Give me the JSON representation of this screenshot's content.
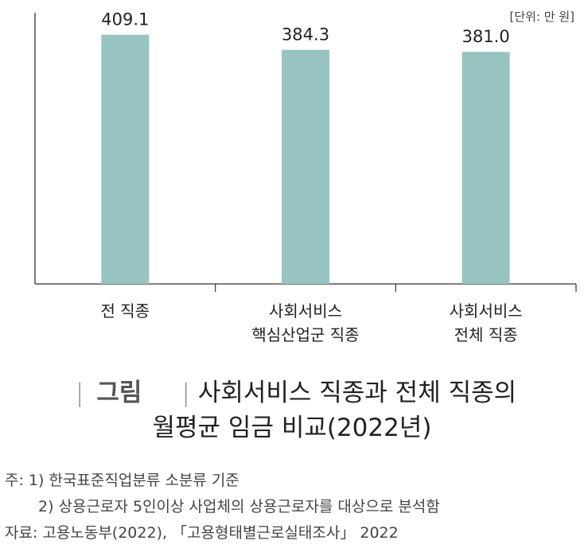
{
  "unit_label": "[단위: 만 원]",
  "caption": {
    "tag": "그림",
    "line1": "사회서비스 직종과 전체 직종의",
    "line2": "월평균 임금 비교(2022년)"
  },
  "notes": {
    "note1": "주: 1) 한국표준직업분류 소분류 기준",
    "note2": "2) 상용근로자 5인이상 사업체의 상용근로자를 대상으로 분석함",
    "source": "자료: 고용노동부(2022), 「고용형태별근로실태조사」 2022"
  },
  "colors": {
    "bar": "#97c3c0",
    "axis": "#333333"
  },
  "chart_data": {
    "type": "bar",
    "categories": [
      [
        "전 직종"
      ],
      [
        "사회서비스",
        "핵심산업군 직종"
      ],
      [
        "사회서비스",
        "전체 직종"
      ]
    ],
    "values": [
      409.1,
      384.3,
      381.0
    ],
    "value_labels": [
      "409.1",
      "384.3",
      "381.0"
    ],
    "ylim": [
      0,
      410
    ],
    "grid": false,
    "legend": false
  }
}
